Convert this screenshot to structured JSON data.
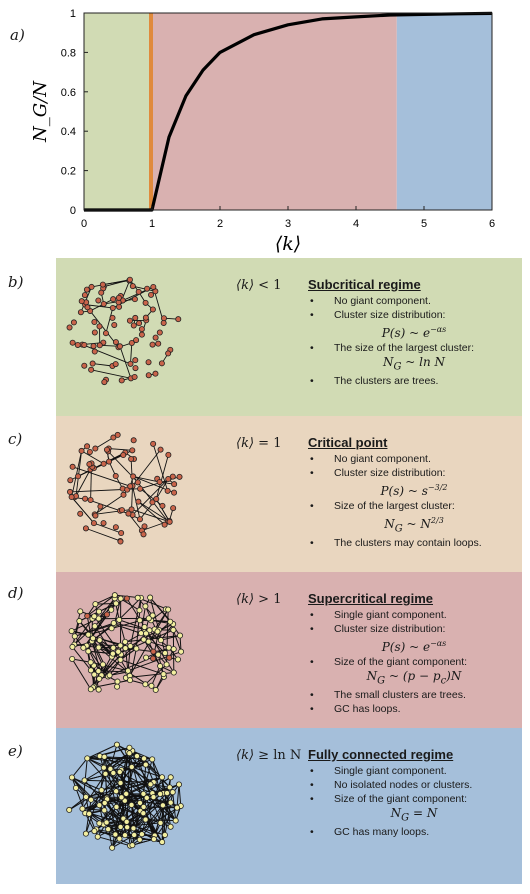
{
  "panels": {
    "a": "a)",
    "b": "b)",
    "c": "c)",
    "d": "d)",
    "e": "e)"
  },
  "colors": {
    "green": "#d1dbb4",
    "orange": "#e9d6bf",
    "red": "#d9b1b0",
    "blue": "#a5bfda",
    "curve": "#000000",
    "node_red": "#c9644a",
    "node_yellow": "#f3efa0"
  },
  "chart_data": {
    "type": "line",
    "xlabel": "⟨k⟩",
    "ylabel": "N_G/N",
    "xlim": [
      0,
      6
    ],
    "ylim": [
      0,
      1
    ],
    "xticks": [
      "0",
      "1",
      "2",
      "3",
      "4",
      "5",
      "6"
    ],
    "yticks": [
      "0",
      "0.2",
      "0.4",
      "0.6",
      "0.8",
      "1"
    ],
    "regions": [
      {
        "from": 0,
        "to": 1,
        "color": "#d1dbb4"
      },
      {
        "from": 1,
        "to": 4.6,
        "color": "#d9b1b0"
      },
      {
        "from": 4.6,
        "to": 6,
        "color": "#a5bfda"
      }
    ],
    "critical_line": {
      "x": 1,
      "color": "#e08a3c"
    },
    "series": [
      {
        "x": [
          0,
          1,
          1.25,
          1.5,
          1.75,
          2,
          2.5,
          3,
          3.5,
          4,
          4.5,
          5,
          5.5,
          6
        ],
        "values": [
          0,
          0,
          0.37,
          0.58,
          0.71,
          0.8,
          0.89,
          0.94,
          0.97,
          0.98,
          0.99,
          0.993,
          0.996,
          0.998
        ]
      }
    ]
  },
  "sections": [
    {
      "key": "b",
      "bg": "#d1dbb4",
      "condition": {
        "lhs": "⟨k⟩",
        "op": "< 1"
      },
      "title": "Subcritical regime",
      "items": [
        {
          "text": "No giant component."
        },
        {
          "text": "Cluster size distribution:",
          "formula": "P(s) ~ e^{−αs}"
        },
        {
          "text": "The size of the largest cluster:",
          "formula": "N_G ~ ln N"
        },
        {
          "text": "The clusters are trees."
        }
      ]
    },
    {
      "key": "c",
      "bg": "#e9d6bf",
      "condition": {
        "lhs": "⟨k⟩",
        "op": "= 1"
      },
      "title": "Critical point",
      "items": [
        {
          "text": "No giant component."
        },
        {
          "text": "Cluster size distribution:",
          "formula": "P(s) ~ s^{−3/2}"
        },
        {
          "text": "Size of the largest cluster:",
          "formula": "N_G ~ N^{2/3}"
        },
        {
          "text": "The clusters may contain loops."
        }
      ]
    },
    {
      "key": "d",
      "bg": "#d9b1b0",
      "condition": {
        "lhs": "⟨k⟩",
        "op": "> 1"
      },
      "title": "Supercritical regime",
      "items": [
        {
          "text": "Single giant component."
        },
        {
          "text": "Cluster size distribution:",
          "formula": "P(s) ~ e^{−αs}"
        },
        {
          "text": "Size of the giant component:",
          "formula": "N_G ~ (p − p_c)N"
        },
        {
          "text": "The small clusters are trees."
        },
        {
          "text": "GC has loops."
        }
      ]
    },
    {
      "key": "e",
      "bg": "#a5bfda",
      "condition": {
        "lhs": "⟨k⟩",
        "op": "≥ ln N"
      },
      "title": "Fully connected regime",
      "items": [
        {
          "text": "Single giant component."
        },
        {
          "text": "No isolated nodes or clusters."
        },
        {
          "text": "Size of the giant component:",
          "formula": "N_G = N"
        },
        {
          "text": "GC has many loops."
        }
      ]
    }
  ]
}
